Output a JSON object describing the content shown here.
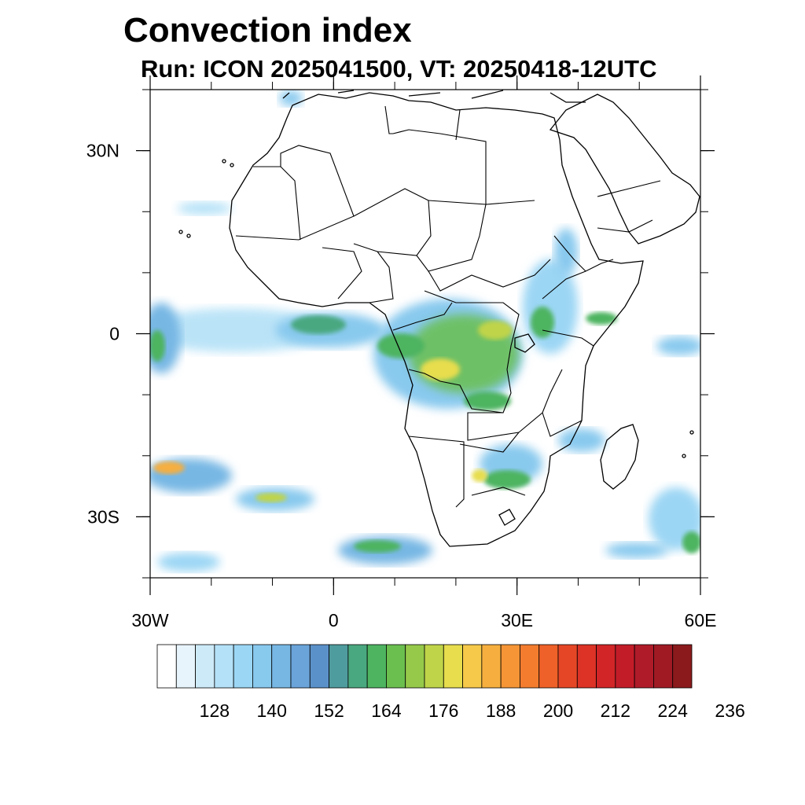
{
  "title": "Convection index",
  "subtitle": "Run: ICON 2025041500,  VT: 20250418-12UTC",
  "map": {
    "region": "Africa",
    "lon_range": [
      -30,
      60
    ],
    "lat_range": [
      -40,
      40
    ],
    "lat_ticks": [
      {
        "value": 30,
        "label": "30N"
      },
      {
        "value": 0,
        "label": "0"
      },
      {
        "value": -30,
        "label": "30S"
      }
    ],
    "lon_ticks": [
      {
        "value": -30,
        "label": "30W"
      },
      {
        "value": 0,
        "label": "0"
      },
      {
        "value": 30,
        "label": "30E"
      },
      {
        "value": 60,
        "label": "60E"
      }
    ],
    "field_regions": [
      {
        "name": "equatorial-atlantic-band",
        "lon": [
          -30,
          5
        ],
        "lat": [
          -4,
          6
        ],
        "level": 0.35
      },
      {
        "name": "congo-basin",
        "lon": [
          8,
          30
        ],
        "lat": [
          -10,
          5
        ],
        "level": 0.6
      },
      {
        "name": "east-africa",
        "lon": [
          28,
          42
        ],
        "lat": [
          -8,
          12
        ],
        "level": 0.4
      },
      {
        "name": "southern-africa",
        "lon": [
          20,
          32
        ],
        "lat": [
          -26,
          -18
        ],
        "level": 0.5
      },
      {
        "name": "south-atlantic-front",
        "lon": [
          -30,
          15
        ],
        "lat": [
          -38,
          -25
        ],
        "level": 0.5
      },
      {
        "name": "indian-ocean-front",
        "lon": [
          40,
          60
        ],
        "lat": [
          -38,
          -25
        ],
        "level": 0.45
      }
    ]
  },
  "colorbar": {
    "colors": [
      "#ffffff",
      "#e7f4fb",
      "#cdeaf8",
      "#b4e1f7",
      "#9bd6f4",
      "#88c9ee",
      "#77b7e4",
      "#6aa4d9",
      "#5b91c9",
      "#4f9c9e",
      "#4aa880",
      "#4eb460",
      "#6bbf4f",
      "#96c94a",
      "#c0d449",
      "#e7dd4d",
      "#f6c94a",
      "#f6af3f",
      "#f59536",
      "#f37c2e",
      "#ee6128",
      "#e54726",
      "#dd3226",
      "#d12527",
      "#c21c28",
      "#b01b29",
      "#a01a24",
      "#8b1a1c"
    ],
    "labels": [
      "128",
      "140",
      "152",
      "164",
      "176",
      "188",
      "200",
      "212",
      "224",
      "236"
    ]
  }
}
